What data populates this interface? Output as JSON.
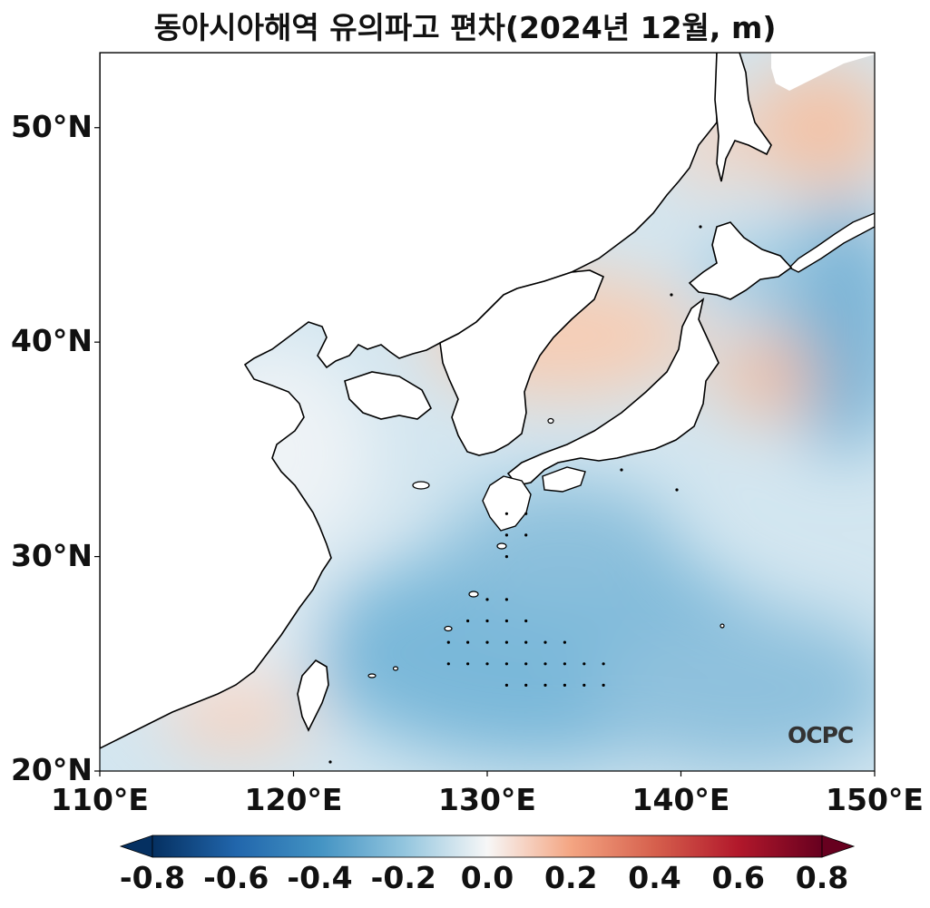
{
  "title": "동아시아해역 유의파고 편차(2024년 12월, m)",
  "logo_text": "OCPC",
  "axes": {
    "lon_range": [
      110,
      150
    ],
    "lat_range": [
      20,
      53.5
    ],
    "x_ticks": [
      "110°E",
      "120°E",
      "130°E",
      "140°E",
      "150°E"
    ],
    "y_ticks": [
      "50°N",
      "40°N",
      "30°N",
      "20°N"
    ]
  },
  "colorbar": {
    "cmap": "RdBu_r",
    "range": [
      -0.8,
      0.8
    ],
    "extend": "both",
    "ticks": [
      "-0.8",
      "-0.6",
      "-0.4",
      "-0.2",
      "0.0",
      "0.2",
      "0.4",
      "0.6",
      "0.8"
    ]
  },
  "colors": {
    "land": "#ffffff",
    "coastline": "#000000",
    "positive": "#b2182b",
    "negative": "#2166ac"
  },
  "anomaly_features": [
    {
      "lon": 144.5,
      "lat": 50.5,
      "value": 0.25
    },
    {
      "lon": 136,
      "lat": 40.5,
      "value": 0.15
    },
    {
      "lon": 144,
      "lat": 38.5,
      "value": 0.25
    },
    {
      "lon": 143,
      "lat": 41,
      "value": -0.3
    },
    {
      "lon": 149,
      "lat": 38.5,
      "value": -0.3
    },
    {
      "lon": 131,
      "lat": 25,
      "value": -0.35
    },
    {
      "lon": 145,
      "lat": 24,
      "value": -0.3
    },
    {
      "lon": 118,
      "lat": 23.5,
      "value": 0.1
    },
    {
      "lon": 140.5,
      "lat": 48.5,
      "value": 0.1
    }
  ],
  "significance_dots": [
    [
      131,
      32
    ],
    [
      132,
      32
    ],
    [
      131,
      31
    ],
    [
      132,
      31
    ],
    [
      131,
      30
    ],
    [
      130,
      28
    ],
    [
      131,
      28
    ],
    [
      129,
      27
    ],
    [
      130,
      27
    ],
    [
      131,
      27
    ],
    [
      132,
      27
    ],
    [
      128,
      26
    ],
    [
      129,
      26
    ],
    [
      130,
      26
    ],
    [
      131,
      26
    ],
    [
      132,
      26
    ],
    [
      133,
      26
    ],
    [
      134,
      26
    ],
    [
      128,
      25
    ],
    [
      129,
      25
    ],
    [
      130,
      25
    ],
    [
      131,
      25
    ],
    [
      132,
      25
    ],
    [
      133,
      25
    ],
    [
      134,
      25
    ],
    [
      135,
      25
    ],
    [
      136,
      25
    ],
    [
      131,
      24
    ],
    [
      132,
      24
    ],
    [
      133,
      24
    ],
    [
      134,
      24
    ],
    [
      135,
      24
    ],
    [
      136,
      24
    ]
  ]
}
